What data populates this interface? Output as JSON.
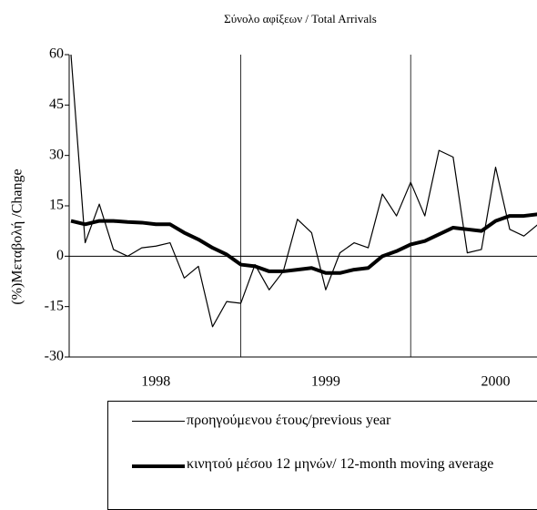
{
  "chart_data": {
    "type": "line",
    "title": "Σύνολο αφίξεων / Total Arrivals",
    "y_label": "(%)Μεταβολή /Change",
    "categories": [
      null,
      null,
      null,
      null,
      null,
      null,
      null,
      null,
      null,
      null,
      null,
      null,
      null,
      null,
      null,
      null,
      null,
      null,
      null,
      null,
      null,
      null,
      null,
      null,
      null,
      null,
      null,
      null,
      null,
      null,
      null,
      null,
      null,
      null
    ],
    "year_labels": [
      "1998",
      "1999",
      "2000"
    ],
    "series": [
      {
        "name": "προηγούμενου έτους/previous year",
        "color": "#000000",
        "width": 1.2,
        "values": [
          60,
          4,
          15.5,
          2,
          0,
          2.5,
          3,
          4,
          -6.5,
          -3,
          -21,
          -13.5,
          -14,
          -2.5,
          -10,
          -4.5,
          11,
          7,
          -10,
          1,
          4,
          2.5,
          18.5,
          12,
          22,
          12,
          31.5,
          29.5,
          1,
          2,
          26.5,
          8,
          6,
          9.5
        ]
      },
      {
        "name": "κινητού μέσου 12 μηνών/ 12-month moving average",
        "color": "#000000",
        "width": 4,
        "values": [
          10.5,
          9.5,
          10.5,
          10.5,
          10.2,
          10,
          9.5,
          9.5,
          7,
          5,
          2.5,
          0.5,
          -2.5,
          -3,
          -4.5,
          -4.5,
          -4,
          -3.5,
          -5,
          -5,
          -4,
          -3.5,
          0,
          1.5,
          3.5,
          4.5,
          6.5,
          8.5,
          8,
          7.5,
          10.5,
          12,
          12,
          12.5
        ]
      }
    ],
    "ylim": [
      -30,
      60
    ],
    "yticks": [
      60,
      45,
      30,
      15,
      0,
      -15,
      -30
    ]
  }
}
